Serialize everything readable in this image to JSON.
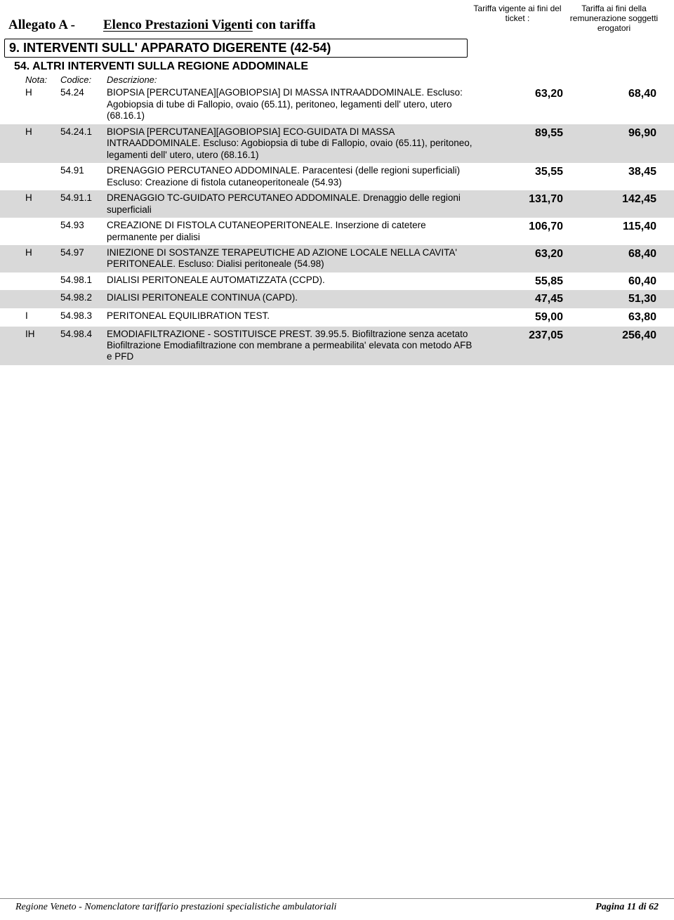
{
  "header": {
    "allegato": "Allegato A -",
    "elenco_main": "Elenco Prestazioni Vigenti",
    "elenco_tail": " con tariffa",
    "col1": "Tariffa vigente ai fini del ticket :",
    "col2": "Tariffa ai fini della remunerazione soggetti erogatori"
  },
  "section": {
    "title": "9. INTERVENTI SULL' APPARATO DIGERENTE (42-54)"
  },
  "subsection": {
    "title": "54. ALTRI INTERVENTI SULLA REGIONE ADDOMINALE"
  },
  "colheads": {
    "nota": "Nota:",
    "codice": "Codice:",
    "descrizione": "Descrizione:"
  },
  "rows": [
    {
      "shade": false,
      "nota": "H",
      "cod": "54.24",
      "desc": "BIOPSIA [PERCUTANEA][AGOBIOPSIA] DI MASSA INTRAADDOMINALE. Escluso: Agobiopsia di tube di Fallopio, ovaio (65.11), peritoneo, legamenti dell' utero, utero (68.16.1)",
      "v1": "63,20",
      "v2": "68,40"
    },
    {
      "shade": true,
      "nota": "H",
      "cod": "54.24.1",
      "desc": "BIOPSIA [PERCUTANEA][AGOBIOPSIA] ECO-GUIDATA DI MASSA INTRAADDOMINALE. Escluso: Agobiopsia di tube di Fallopio, ovaio (65.11), peritoneo, legamenti dell' utero, utero (68.16.1)",
      "v1": "89,55",
      "v2": "96,90"
    },
    {
      "shade": false,
      "nota": "",
      "cod": "54.91",
      "desc": "DRENAGGIO PERCUTANEO ADDOMINALE. Paracentesi (delle regioni superficiali) Escluso: Creazione di fistola cutaneoperitoneale (54.93)",
      "v1": "35,55",
      "v2": "38,45"
    },
    {
      "shade": true,
      "nota": "H",
      "cod": "54.91.1",
      "desc": "DRENAGGIO TC-GUIDATO PERCUTANEO ADDOMINALE. Drenaggio delle regioni superficiali",
      "v1": "131,70",
      "v2": "142,45"
    },
    {
      "shade": false,
      "nota": "",
      "cod": "54.93",
      "desc": "CREAZIONE DI FISTOLA CUTANEOPERITONEALE. Inserzione di catetere permanente per dialisi",
      "v1": "106,70",
      "v2": "115,40"
    },
    {
      "shade": true,
      "nota": "H",
      "cod": "54.97",
      "desc": "INIEZIONE DI SOSTANZE TERAPEUTICHE AD AZIONE LOCALE NELLA CAVITA'  PERITONEALE. Escluso: Dialisi peritoneale (54.98)",
      "v1": "63,20",
      "v2": "68,40"
    },
    {
      "shade": false,
      "nota": "",
      "cod": "54.98.1",
      "desc": "DIALISI PERITONEALE AUTOMATIZZATA (CCPD).",
      "v1": "55,85",
      "v2": "60,40"
    },
    {
      "shade": true,
      "nota": "",
      "cod": "54.98.2",
      "desc": "DIALISI PERITONEALE CONTINUA (CAPD).",
      "v1": "47,45",
      "v2": "51,30"
    },
    {
      "shade": false,
      "nota": "I",
      "cod": "54.98.3",
      "desc": "PERITONEAL EQUILIBRATION TEST.",
      "v1": "59,00",
      "v2": "63,80"
    },
    {
      "shade": true,
      "nota": "IH",
      "cod": "54.98.4",
      "desc": "EMODIAFILTRAZIONE - SOSTITUISCE PREST. 39.95.5. Biofiltrazione senza acetato Biofiltrazione Emodiafiltrazione con membrane a permeabilita' elevata con metodo AFB e PFD",
      "v1": "237,05",
      "v2": "256,40"
    }
  ],
  "footer": {
    "left": "Regione Veneto - Nomenclatore tariffario prestazioni specialistiche ambulatoriali",
    "right": "Pagina 11 di 62"
  }
}
